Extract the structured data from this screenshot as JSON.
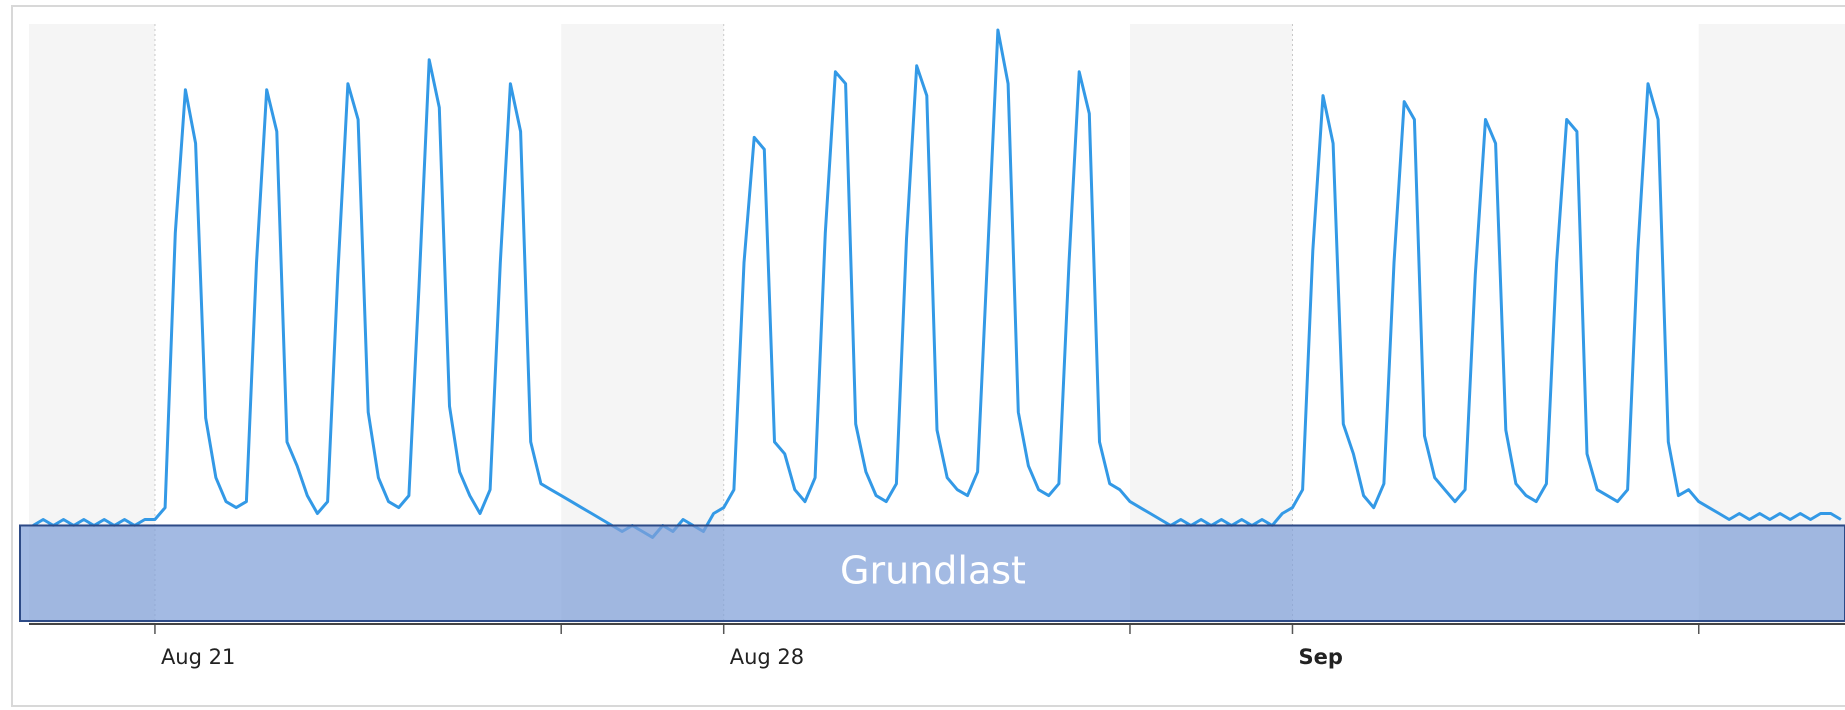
{
  "chart_data": {
    "type": "line",
    "xlim": [
      19.45,
      41.8
    ],
    "ylim": [
      0,
      100
    ],
    "xticks": [
      {
        "value": 21,
        "label": "Aug 21"
      },
      {
        "value": 28,
        "label": "Aug 28"
      },
      {
        "value": 35,
        "label": "Sep"
      }
    ],
    "minor_xticks": [
      26,
      33,
      40
    ],
    "shaded": [
      [
        19.45,
        21
      ],
      [
        26,
        28
      ],
      [
        33,
        35
      ],
      [
        40,
        41.8
      ]
    ],
    "grid": true,
    "band": {
      "label": "Grundlast",
      "from": 0,
      "to": 16,
      "color": "#7f9fd8"
    },
    "series": [
      {
        "color": "#3399e6",
        "x": [
          19.5,
          19.625,
          19.75,
          19.875,
          20,
          20.125,
          20.25,
          20.375,
          20.5,
          20.625,
          20.75,
          20.875,
          21,
          21.125,
          21.25,
          21.375,
          21.5,
          21.625,
          21.75,
          21.875,
          22,
          22.125,
          22.25,
          22.375,
          22.5,
          22.625,
          22.75,
          22.875,
          23,
          23.125,
          23.25,
          23.375,
          23.5,
          23.625,
          23.75,
          23.875,
          24,
          24.125,
          24.25,
          24.375,
          24.5,
          24.625,
          24.75,
          24.875,
          25,
          25.125,
          25.25,
          25.375,
          25.5,
          25.625,
          25.75,
          25.875,
          26,
          26.125,
          26.25,
          26.375,
          26.5,
          26.625,
          26.75,
          26.875,
          27,
          27.125,
          27.25,
          27.375,
          27.5,
          27.625,
          27.75,
          27.875,
          28,
          28.125,
          28.25,
          28.375,
          28.5,
          28.625,
          28.75,
          28.875,
          29,
          29.125,
          29.25,
          29.375,
          29.5,
          29.625,
          29.75,
          29.875,
          30,
          30.125,
          30.25,
          30.375,
          30.5,
          30.625,
          30.75,
          30.875,
          31,
          31.125,
          31.25,
          31.375,
          31.5,
          31.625,
          31.75,
          31.875,
          32,
          32.125,
          32.25,
          32.375,
          32.5,
          32.625,
          32.75,
          32.875,
          33,
          33.125,
          33.25,
          33.375,
          33.5,
          33.625,
          33.75,
          33.875,
          34,
          34.125,
          34.25,
          34.375,
          34.5,
          34.625,
          34.75,
          34.875,
          35,
          35.125,
          35.25,
          35.375,
          35.5,
          35.625,
          35.75,
          35.875,
          36,
          36.125,
          36.25,
          36.375,
          36.5,
          36.625,
          36.75,
          36.875,
          37,
          37.125,
          37.25,
          37.375,
          37.5,
          37.625,
          37.75,
          37.875,
          38,
          38.125,
          38.25,
          38.375,
          38.5,
          38.625,
          38.75,
          38.875,
          39,
          39.125,
          39.25,
          39.375,
          39.5,
          39.625,
          39.75,
          39.875,
          40,
          40.125,
          40.25,
          40.375,
          40.5,
          40.625,
          40.75,
          40.875,
          41,
          41.125,
          41.25,
          41.375,
          41.5,
          41.625,
          41.75
        ],
        "values": [
          16,
          17,
          16,
          17,
          16,
          17,
          16,
          17,
          16,
          17,
          16,
          17,
          17,
          19,
          65,
          89,
          80,
          34,
          24,
          20,
          19,
          20,
          60,
          89,
          82,
          30,
          26,
          21,
          18,
          20,
          58,
          90,
          84,
          35,
          24,
          20,
          19,
          21,
          56,
          94,
          86,
          36,
          25,
          21,
          18,
          22,
          60,
          90,
          82,
          30,
          23,
          22,
          21,
          20,
          19,
          18,
          17,
          16,
          15,
          16,
          15,
          14,
          16,
          15,
          17,
          16,
          15,
          18,
          19,
          22,
          60,
          81,
          79,
          30,
          28,
          22,
          20,
          24,
          65,
          92,
          90,
          33,
          25,
          21,
          20,
          23,
          64,
          93,
          88,
          32,
          24,
          22,
          21,
          25,
          62,
          99,
          90,
          35,
          26,
          22,
          21,
          23,
          60,
          92,
          85,
          30,
          23,
          22,
          20,
          19,
          18,
          17,
          16,
          17,
          16,
          17,
          16,
          17,
          16,
          17,
          16,
          17,
          16,
          18,
          19,
          22,
          62,
          88,
          80,
          33,
          28,
          21,
          19,
          23,
          60,
          87,
          84,
          31,
          24,
          22,
          20,
          22,
          58,
          84,
          80,
          32,
          23,
          21,
          20,
          23,
          60,
          84,
          82,
          28,
          22,
          21,
          20,
          22,
          62,
          90,
          84,
          30,
          21,
          22,
          20,
          19,
          18,
          17,
          18,
          17,
          18,
          17,
          18,
          17,
          18,
          17,
          18,
          18,
          17
        ]
      }
    ]
  }
}
